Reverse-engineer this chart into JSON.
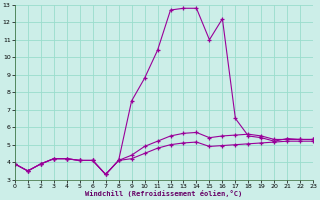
{
  "xlabel": "Windchill (Refroidissement éolien,°C)",
  "background_color": "#cceee8",
  "grid_color": "#99ddcc",
  "line_color": "#990099",
  "x": [
    0,
    1,
    2,
    3,
    4,
    5,
    6,
    7,
    8,
    9,
    10,
    11,
    12,
    13,
    14,
    15,
    16,
    17,
    18,
    19,
    20,
    21,
    22,
    23
  ],
  "series1": [
    3.9,
    3.5,
    3.9,
    4.2,
    4.2,
    4.1,
    4.1,
    3.3,
    4.1,
    4.2,
    4.5,
    4.8,
    5.0,
    5.1,
    5.15,
    4.9,
    4.95,
    5.0,
    5.05,
    5.1,
    5.15,
    5.2,
    5.2,
    5.2
  ],
  "series2": [
    3.9,
    3.5,
    3.9,
    4.2,
    4.2,
    4.1,
    4.1,
    3.3,
    4.1,
    4.4,
    4.9,
    5.2,
    5.5,
    5.65,
    5.7,
    5.4,
    5.5,
    5.55,
    5.6,
    5.5,
    5.3,
    5.3,
    5.3,
    5.3
  ],
  "series3": [
    3.9,
    3.5,
    3.9,
    4.2,
    4.2,
    4.1,
    4.1,
    3.3,
    4.1,
    7.5,
    8.8,
    10.4,
    12.7,
    12.8,
    12.8,
    11.0,
    12.2,
    6.5,
    5.5,
    5.4,
    5.2,
    5.35,
    5.3,
    5.3
  ],
  "ylim": [
    3,
    13
  ],
  "xlim": [
    0,
    23
  ],
  "yticks": [
    3,
    4,
    5,
    6,
    7,
    8,
    9,
    10,
    11,
    12,
    13
  ],
  "xticks": [
    0,
    1,
    2,
    3,
    4,
    5,
    6,
    7,
    8,
    9,
    10,
    11,
    12,
    13,
    14,
    15,
    16,
    17,
    18,
    19,
    20,
    21,
    22,
    23
  ],
  "xtick_labels": [
    "0",
    "1",
    "2",
    "3",
    "4",
    "5",
    "6",
    "7",
    "8",
    "9",
    "10",
    "11",
    "12",
    "13",
    "14",
    "15",
    "16",
    "17",
    "18",
    "19",
    "20",
    "21",
    "22",
    "23"
  ]
}
